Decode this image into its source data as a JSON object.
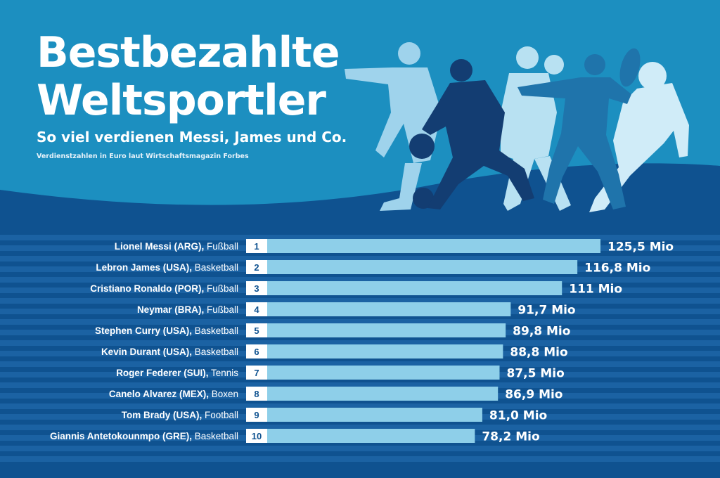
{
  "header": {
    "title_line1": "Bestbezahlte",
    "title_line2": "Weltsportler",
    "subtitle": "So viel verdienen Messi, James und Co.",
    "source_note": "Verdienstzahlen in Euro laut Wirtschaftsmagazin Forbes"
  },
  "colors": {
    "top_background": "#1c8fc0",
    "bottom_background": "#0f5290",
    "stripe": "#1b62a3",
    "bar": "#8ecfe9",
    "text": "#ffffff"
  },
  "illustration": {
    "icon": "athlete-silhouettes-icon",
    "figures": [
      "soccer-player-icon",
      "basketball-player-icon",
      "boxer-icon",
      "tennis-player-icon",
      "football-player-icon"
    ]
  },
  "chart_data": {
    "type": "bar",
    "orientation": "horizontal",
    "unit": "Mio",
    "xlim": [
      0,
      125.5
    ],
    "rows": [
      {
        "rank": "1",
        "name": "Lionel Messi (ARG),",
        "sport": " Fußball",
        "value": 125.5,
        "value_label": "125,5 Mio"
      },
      {
        "rank": "2",
        "name": "Lebron James (USA),",
        "sport": " Basketball",
        "value": 116.8,
        "value_label": "116,8 Mio"
      },
      {
        "rank": "3",
        "name": "Cristiano Ronaldo (POR),",
        "sport": " Fußball",
        "value": 111,
        "value_label": "111 Mio"
      },
      {
        "rank": "4",
        "name": "Neymar (BRA),",
        "sport": " Fußball",
        "value": 91.7,
        "value_label": "91,7 Mio"
      },
      {
        "rank": "5",
        "name": "Stephen Curry (USA),",
        "sport": " Basketball",
        "value": 89.8,
        "value_label": "89,8 Mio"
      },
      {
        "rank": "6",
        "name": "Kevin Durant (USA),",
        "sport": " Basketball",
        "value": 88.8,
        "value_label": "88,8 Mio"
      },
      {
        "rank": "7",
        "name": "Roger Federer (SUI),",
        "sport": " Tennis",
        "value": 87.5,
        "value_label": "87,5 Mio"
      },
      {
        "rank": "8",
        "name": "Canelo Alvarez (MEX),",
        "sport": " Boxen",
        "value": 86.9,
        "value_label": "86,9 Mio"
      },
      {
        "rank": "9",
        "name": "Tom Brady (USA),",
        "sport": " Football",
        "value": 81.0,
        "value_label": "81,0 Mio"
      },
      {
        "rank": "10",
        "name": "Giannis Antetokounmpo (GRE),",
        "sport": " Basketball",
        "value": 78.2,
        "value_label": "78,2 Mio"
      }
    ]
  }
}
